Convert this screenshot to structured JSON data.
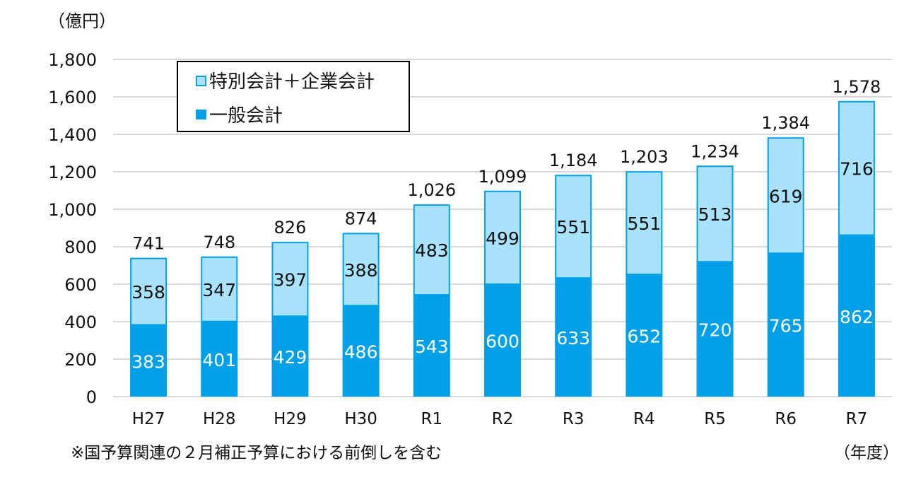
{
  "chart_data": {
    "type": "bar",
    "stacked": true,
    "unit_label": "（億円）",
    "xlabel": "（年度）",
    "footnote": "※国予算関連の２月補正予算における前倒しを含む",
    "categories": [
      "H27",
      "H28",
      "H29",
      "H30",
      "R1",
      "R2",
      "R3",
      "R4",
      "R5",
      "R6",
      "R7"
    ],
    "series": [
      {
        "name": "一般会計",
        "color": "#00A0E9",
        "values": [
          383,
          401,
          429,
          486,
          543,
          600,
          633,
          652,
          720,
          765,
          862
        ]
      },
      {
        "name": "特別会計＋企業会計",
        "color": "#A8E2FC",
        "values": [
          358,
          347,
          397,
          388,
          483,
          499,
          551,
          551,
          513,
          619,
          716
        ]
      }
    ],
    "totals": [
      "741",
      "748",
      "826",
      "874",
      "1,026",
      "1,099",
      "1,184",
      "1,203",
      "1,234",
      "1,384",
      "1,578"
    ],
    "ylim": [
      0,
      1800
    ],
    "yticks": [
      "0",
      "200",
      "400",
      "600",
      "800",
      "1,000",
      "1,200",
      "1,400",
      "1,600",
      "1,800"
    ],
    "grid": true,
    "legend": {
      "placement": "top-left",
      "items": [
        "特別会計＋企業会計",
        "一般会計"
      ]
    }
  }
}
